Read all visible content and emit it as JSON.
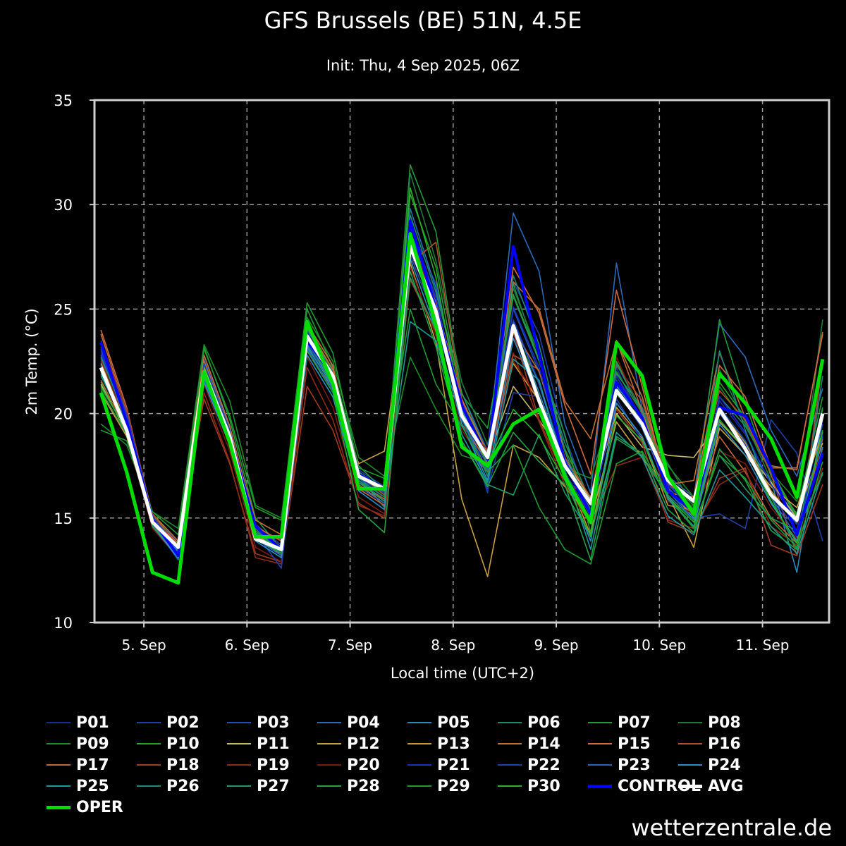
{
  "chart_data": {
    "type": "line",
    "title": "GFS Brussels (BE) 51N, 4.5E",
    "subtitle": "Init: Thu, 4 Sep 2025, 06Z",
    "xlabel": "Local time (UTC+2)",
    "ylabel": "2m Temp. (°C)",
    "ylim": [
      10,
      35
    ],
    "yticks": [
      10,
      15,
      20,
      25,
      30,
      35
    ],
    "xticks": [
      {
        "label": "5. Sep",
        "t": 24
      },
      {
        "label": "6. Sep",
        "t": 48
      },
      {
        "label": "7. Sep",
        "t": 72
      },
      {
        "label": "8. Sep",
        "t": 96
      },
      {
        "label": "9. Sep",
        "t": 120
      },
      {
        "label": "10. Sep",
        "t": 144
      },
      {
        "label": "11. Sep",
        "t": 168
      }
    ],
    "xlim": [
      12.5,
      183.5
    ],
    "grid": true,
    "legend_position": "bottom",
    "x_hours_local": [
      14,
      20,
      26,
      32,
      38,
      44,
      50,
      56,
      62,
      68,
      74,
      80,
      86,
      92,
      98,
      104,
      110,
      116,
      122,
      128,
      134,
      140,
      146,
      152,
      158,
      164,
      170,
      176,
      182
    ],
    "series": [
      {
        "name": "P01",
        "color": "#1a2a9a",
        "values": [
          23.0,
          19.8,
          15.0,
          13.3,
          22.0,
          19.0,
          14.4,
          13.6,
          23.6,
          21.8,
          17.0,
          16.2,
          29.0,
          25.6,
          20.0,
          18.0,
          24.5,
          21.5,
          17.7,
          15.7,
          21.8,
          19.8,
          16.8,
          15.4,
          20.6,
          19.0,
          16.6,
          14.9,
          19.8
        ]
      },
      {
        "name": "P02",
        "color": "#1c3fa8",
        "values": [
          23.5,
          19.9,
          15.2,
          13.8,
          22.2,
          19.1,
          14.7,
          13.7,
          23.9,
          21.7,
          17.3,
          16.5,
          28.9,
          26.2,
          20.3,
          16.2,
          26.3,
          23.8,
          18.9,
          15.6,
          22.2,
          19.5,
          16.5,
          15.0,
          15.2,
          14.5,
          19.7,
          18.1,
          13.9
        ]
      },
      {
        "name": "P03",
        "color": "#1f4fb5",
        "values": [
          22.5,
          19.5,
          14.7,
          13.4,
          21.8,
          18.7,
          14.2,
          13.3,
          23.4,
          21.5,
          16.8,
          16.0,
          28.5,
          25.0,
          19.8,
          17.5,
          25.0,
          22.0,
          17.9,
          16.0,
          21.4,
          19.5,
          16.7,
          15.2,
          20.3,
          18.7,
          16.2,
          14.7,
          19.5
        ]
      },
      {
        "name": "P04",
        "color": "#2a6ab8",
        "values": [
          22.8,
          19.6,
          15.0,
          13.0,
          22.6,
          19.3,
          14.5,
          13.5,
          24.0,
          22.0,
          17.2,
          16.4,
          29.8,
          26.0,
          21.0,
          18.2,
          29.6,
          26.8,
          19.5,
          16.2,
          27.2,
          20.2,
          17.0,
          16.0,
          24.3,
          22.7,
          19.2,
          17.0,
          21.2
        ]
      },
      {
        "name": "P05",
        "color": "#2a8ab8",
        "values": [
          22.0,
          19.2,
          14.6,
          13.2,
          21.6,
          18.8,
          14.1,
          13.4,
          23.3,
          21.4,
          16.8,
          15.8,
          28.7,
          25.5,
          20.2,
          17.6,
          24.3,
          21.0,
          17.6,
          15.4,
          21.3,
          19.8,
          16.4,
          15.0,
          20.0,
          18.5,
          16.8,
          12.4,
          19.8
        ]
      },
      {
        "name": "P06",
        "color": "#1e8a6a",
        "values": [
          21.8,
          19.4,
          15.0,
          13.4,
          22.0,
          19.0,
          14.3,
          13.6,
          23.6,
          21.6,
          17.0,
          15.5,
          29.5,
          25.8,
          21.0,
          18.0,
          25.6,
          22.5,
          18.6,
          15.8,
          21.9,
          20.3,
          17.0,
          15.3,
          20.8,
          19.4,
          17.2,
          15.0,
          20.3
        ]
      },
      {
        "name": "P07",
        "color": "#229a3a",
        "values": [
          21.5,
          19.0,
          15.2,
          13.7,
          23.2,
          19.7,
          15.0,
          13.5,
          25.0,
          22.2,
          17.5,
          16.3,
          31.9,
          28.7,
          20.9,
          19.3,
          26.2,
          22.5,
          19.0,
          14.3,
          22.0,
          20.0,
          16.8,
          15.6,
          24.5,
          20.5,
          17.0,
          15.2,
          20.8
        ]
      },
      {
        "name": "P08",
        "color": "#1e7a3c",
        "values": [
          21.2,
          19.3,
          14.8,
          13.1,
          22.4,
          18.9,
          14.3,
          13.3,
          24.4,
          21.9,
          17.1,
          16.1,
          31.5,
          27.3,
          21.5,
          18.5,
          26.0,
          22.8,
          17.8,
          15.3,
          21.6,
          19.7,
          17.6,
          15.5,
          22.1,
          19.6,
          16.8,
          15.0,
          24.5
        ]
      },
      {
        "name": "P09",
        "color": "#1f8a2a",
        "values": [
          19.5,
          18.5,
          15.3,
          14.5,
          23.3,
          20.6,
          15.6,
          15.0,
          24.6,
          22.5,
          17.9,
          17.0,
          22.7,
          20.2,
          18.0,
          17.6,
          23.9,
          21.5,
          17.4,
          16.9,
          20.9,
          19.8,
          17.5,
          16.0,
          21.3,
          19.5,
          17.2,
          15.8,
          22.4
        ]
      },
      {
        "name": "P10",
        "color": "#2aa02a",
        "values": [
          22.0,
          19.7,
          15.1,
          13.6,
          22.3,
          19.2,
          14.4,
          13.4,
          24.2,
          22.1,
          17.2,
          16.2,
          30.5,
          27.0,
          20.6,
          18.1,
          25.7,
          22.6,
          18.3,
          15.7,
          22.5,
          20.1,
          16.9,
          15.4,
          21.5,
          19.8,
          17.3,
          15.1,
          20.2
        ]
      },
      {
        "name": "P11",
        "color": "#c8b86a",
        "values": [
          21.4,
          19.1,
          14.9,
          13.5,
          21.9,
          18.8,
          14.2,
          13.4,
          23.5,
          21.4,
          17.0,
          16.2,
          28.0,
          24.6,
          20.1,
          17.8,
          21.3,
          19.7,
          17.8,
          15.9,
          20.0,
          18.4,
          18.0,
          17.9,
          19.6,
          18.3,
          16.7,
          15.0,
          18.6
        ]
      },
      {
        "name": "P12",
        "color": "#c8a040",
        "values": [
          21.0,
          18.9,
          14.6,
          13.2,
          21.7,
          18.6,
          14.0,
          13.3,
          23.0,
          21.2,
          17.6,
          18.2,
          27.2,
          23.4,
          15.9,
          12.2,
          18.5,
          17.9,
          16.5,
          14.9,
          19.6,
          17.9,
          16.1,
          13.6,
          19.3,
          18.0,
          16.5,
          15.5,
          19.1
        ]
      },
      {
        "name": "P13",
        "color": "#c89a30",
        "values": [
          22.4,
          19.6,
          14.9,
          13.5,
          22.2,
          18.9,
          14.6,
          13.6,
          23.8,
          21.8,
          17.1,
          16.4,
          28.2,
          25.2,
          20.0,
          17.8,
          22.4,
          20.6,
          17.2,
          14.2,
          20.3,
          18.8,
          15.6,
          15.4,
          20.2,
          18.6,
          16.3,
          14.8,
          19.8
        ]
      },
      {
        "name": "P14",
        "color": "#c07030",
        "values": [
          23.8,
          20.1,
          15.2,
          13.9,
          22.5,
          19.2,
          14.9,
          14.2,
          24.1,
          22.1,
          16.6,
          15.7,
          27.6,
          24.4,
          18.4,
          17.3,
          26.3,
          25.0,
          20.6,
          18.8,
          23.5,
          20.8,
          16.6,
          16.8,
          22.9,
          19.8,
          17.5,
          17.3,
          23.9
        ]
      },
      {
        "name": "P15",
        "color": "#d06a40",
        "values": [
          24.0,
          20.3,
          15.0,
          13.8,
          22.8,
          19.4,
          14.6,
          13.9,
          24.3,
          22.3,
          16.4,
          15.6,
          28.6,
          25.3,
          20.7,
          18.1,
          27.0,
          24.8,
          20.4,
          17.1,
          25.9,
          21.3,
          16.2,
          16.0,
          22.3,
          20.8,
          17.4,
          17.4,
          23.8
        ]
      },
      {
        "name": "P16",
        "color": "#b05030",
        "values": [
          23.2,
          20.0,
          15.2,
          13.6,
          22.0,
          19.0,
          14.4,
          13.5,
          23.7,
          21.7,
          17.0,
          16.1,
          27.2,
          28.2,
          20.6,
          17.5,
          22.8,
          22.1,
          17.9,
          16.0,
          22.3,
          20.6,
          16.6,
          15.9,
          21.1,
          19.7,
          17.1,
          13.2,
          22.5
        ]
      },
      {
        "name": "P17",
        "color": "#c06a3a",
        "values": [
          21.6,
          19.2,
          14.7,
          13.3,
          21.8,
          18.7,
          14.2,
          13.2,
          23.2,
          21.3,
          16.7,
          15.9,
          27.9,
          24.8,
          19.5,
          17.7,
          24.0,
          22.0,
          18.2,
          15.1,
          23.5,
          20.1,
          16.4,
          15.1,
          18.9,
          17.2,
          15.0,
          13.8,
          18.8
        ]
      },
      {
        "name": "P18",
        "color": "#a03a20",
        "values": [
          23.4,
          20.2,
          15.0,
          13.7,
          20.7,
          17.6,
          13.3,
          12.9,
          21.3,
          19.2,
          15.7,
          15.0,
          26.4,
          23.9,
          18.6,
          17.2,
          23.9,
          19.7,
          16.9,
          15.8,
          20.2,
          18.6,
          14.8,
          14.3,
          16.9,
          17.4,
          13.7,
          13.2,
          16.6
        ]
      },
      {
        "name": "P19",
        "color": "#902a18",
        "values": [
          22.6,
          19.4,
          14.8,
          13.3,
          21.0,
          17.7,
          13.1,
          12.8,
          22.2,
          19.7,
          15.6,
          15.1,
          28.5,
          25.1,
          19.4,
          18.3,
          22.9,
          19.6,
          16.6,
          14.7,
          17.5,
          17.9,
          14.9,
          14.5,
          16.6,
          17.3,
          14.6,
          13.7,
          17.4
        ]
      },
      {
        "name": "P20",
        "color": "#7a1c10",
        "values": [
          22.2,
          19.0,
          14.5,
          13.1,
          21.4,
          18.2,
          13.6,
          12.9,
          22.7,
          20.3,
          16.0,
          15.2,
          27.0,
          23.7,
          19.2,
          17.4,
          22.5,
          20.7,
          16.8,
          15.2,
          22.7,
          19.9,
          15.8,
          15.2,
          18.2,
          17.6,
          15.5,
          14.0,
          18.3
        ]
      },
      {
        "name": "P21",
        "color": "#1a30c8",
        "values": [
          22.9,
          19.8,
          15.0,
          13.4,
          22.1,
          19.0,
          14.6,
          13.5,
          23.7,
          21.6,
          17.0,
          16.3,
          28.6,
          25.5,
          20.1,
          17.6,
          25.1,
          22.2,
          17.8,
          15.6,
          21.8,
          19.6,
          16.6,
          15.3,
          20.8,
          19.1,
          16.6,
          14.9,
          19.7
        ]
      },
      {
        "name": "P22",
        "color": "#2040b0",
        "values": [
          23.1,
          20.0,
          15.1,
          13.5,
          22.4,
          19.2,
          14.3,
          12.6,
          23.4,
          21.2,
          16.9,
          16.2,
          27.6,
          24.4,
          19.9,
          16.4,
          21.0,
          20.8,
          17.2,
          15.1,
          20.7,
          18.7,
          16.1,
          14.5,
          20.1,
          18.5,
          16.1,
          14.4,
          19.0
        ]
      },
      {
        "name": "P23",
        "color": "#2a60c0",
        "values": [
          22.3,
          19.4,
          14.7,
          13.0,
          21.6,
          18.6,
          14.0,
          13.2,
          23.1,
          21.1,
          16.5,
          15.7,
          27.8,
          24.8,
          19.7,
          17.3,
          24.4,
          21.4,
          17.5,
          15.2,
          21.1,
          19.3,
          16.3,
          14.9,
          20.0,
          18.4,
          16.0,
          14.1,
          18.9
        ]
      },
      {
        "name": "P24",
        "color": "#2a90c8",
        "values": [
          22.1,
          19.3,
          14.6,
          13.1,
          21.5,
          18.5,
          13.9,
          13.1,
          22.8,
          20.8,
          16.3,
          15.4,
          27.4,
          24.0,
          19.5,
          16.8,
          23.6,
          20.6,
          17.0,
          13.9,
          20.5,
          18.9,
          15.9,
          14.6,
          19.5,
          18.0,
          15.7,
          13.9,
          18.4
        ]
      },
      {
        "name": "P25",
        "color": "#1a9a9a",
        "values": [
          21.9,
          19.2,
          14.6,
          13.4,
          21.7,
          18.7,
          14.1,
          13.3,
          23.2,
          21.3,
          16.7,
          15.8,
          24.4,
          23.5,
          19.0,
          16.7,
          22.6,
          21.6,
          17.3,
          13.5,
          19.1,
          17.9,
          15.1,
          14.2,
          17.3,
          16.0,
          14.6,
          13.3,
          17.2
        ]
      },
      {
        "name": "P26",
        "color": "#1a8a7a",
        "values": [
          22.7,
          19.7,
          14.9,
          13.6,
          22.0,
          19.1,
          14.4,
          13.5,
          23.6,
          21.5,
          16.9,
          16.0,
          28.1,
          24.9,
          19.8,
          17.0,
          26.6,
          23.3,
          18.2,
          15.0,
          22.4,
          20.0,
          16.1,
          14.9,
          23.0,
          19.2,
          16.0,
          13.5,
          21.8
        ]
      },
      {
        "name": "P27",
        "color": "#1f9a60",
        "values": [
          22.2,
          19.5,
          14.8,
          13.5,
          21.9,
          18.9,
          14.3,
          13.4,
          23.5,
          21.4,
          16.8,
          15.8,
          26.5,
          24.0,
          18.7,
          16.6,
          16.1,
          19.0,
          16.2,
          14.2,
          18.8,
          18.0,
          16.0,
          14.6,
          18.0,
          16.4,
          15.0,
          14.4,
          17.1
        ]
      },
      {
        "name": "P28",
        "color": "#22a044",
        "values": [
          21.1,
          19.0,
          14.6,
          13.3,
          21.8,
          18.7,
          14.0,
          13.3,
          23.0,
          21.0,
          15.4,
          14.3,
          26.8,
          23.2,
          18.7,
          16.5,
          19.1,
          17.7,
          16.6,
          13.0,
          18.9,
          18.1,
          15.4,
          14.3,
          18.3,
          16.8,
          14.4,
          13.5,
          17.7
        ]
      },
      {
        "name": "P29",
        "color": "#1f9a30",
        "values": [
          19.2,
          18.7,
          15.3,
          14.2,
          23.1,
          19.9,
          15.5,
          14.9,
          25.3,
          22.9,
          17.4,
          16.9,
          25.0,
          21.4,
          19.4,
          17.2,
          18.5,
          15.5,
          13.5,
          12.8,
          17.6,
          18.2,
          16.0,
          14.5,
          18.0,
          16.9,
          14.9,
          13.6,
          19.2
        ]
      },
      {
        "name": "P30",
        "color": "#2ab02a",
        "values": [
          21.3,
          19.2,
          14.8,
          13.7,
          22.1,
          19.0,
          14.5,
          13.6,
          23.8,
          21.8,
          17.2,
          16.3,
          30.8,
          26.5,
          20.1,
          17.6,
          20.2,
          18.9,
          16.8,
          14.1,
          19.9,
          18.7,
          16.0,
          14.8,
          19.7,
          18.3,
          15.8,
          13.8,
          19.2
        ]
      },
      {
        "name": "CONTROL",
        "color": "#0000ff",
        "values": [
          23.4,
          19.6,
          14.9,
          13.2,
          22.0,
          18.9,
          14.6,
          13.5,
          23.5,
          21.8,
          17.1,
          16.4,
          29.2,
          25.0,
          20.4,
          17.8,
          28.0,
          22.8,
          17.6,
          15.2,
          21.5,
          19.8,
          16.3,
          15.3,
          20.3,
          19.9,
          17.4,
          14.2,
          18.1
        ]
      },
      {
        "name": "AVG",
        "color": "#ffffff",
        "values": [
          22.2,
          19.2,
          14.8,
          13.6,
          22.0,
          18.9,
          14.0,
          13.5,
          23.7,
          21.8,
          17.0,
          16.4,
          28.0,
          24.9,
          19.9,
          17.9,
          24.2,
          20.6,
          17.5,
          15.7,
          21.1,
          19.5,
          16.8,
          15.8,
          20.2,
          18.3,
          16.1,
          14.9,
          20.0
        ]
      },
      {
        "name": "OPER",
        "color": "#00dd00",
        "values": [
          21.0,
          17.2,
          12.4,
          11.9,
          22.0,
          18.6,
          14.1,
          14.1,
          24.4,
          21.4,
          16.4,
          16.4,
          28.6,
          24.2,
          18.4,
          17.5,
          19.5,
          20.2,
          17.0,
          14.8,
          23.4,
          21.8,
          17.0,
          15.2,
          21.9,
          20.5,
          18.8,
          16.0,
          22.6
        ]
      }
    ]
  },
  "footer": {
    "brand": "wetterzentrale.de"
  }
}
